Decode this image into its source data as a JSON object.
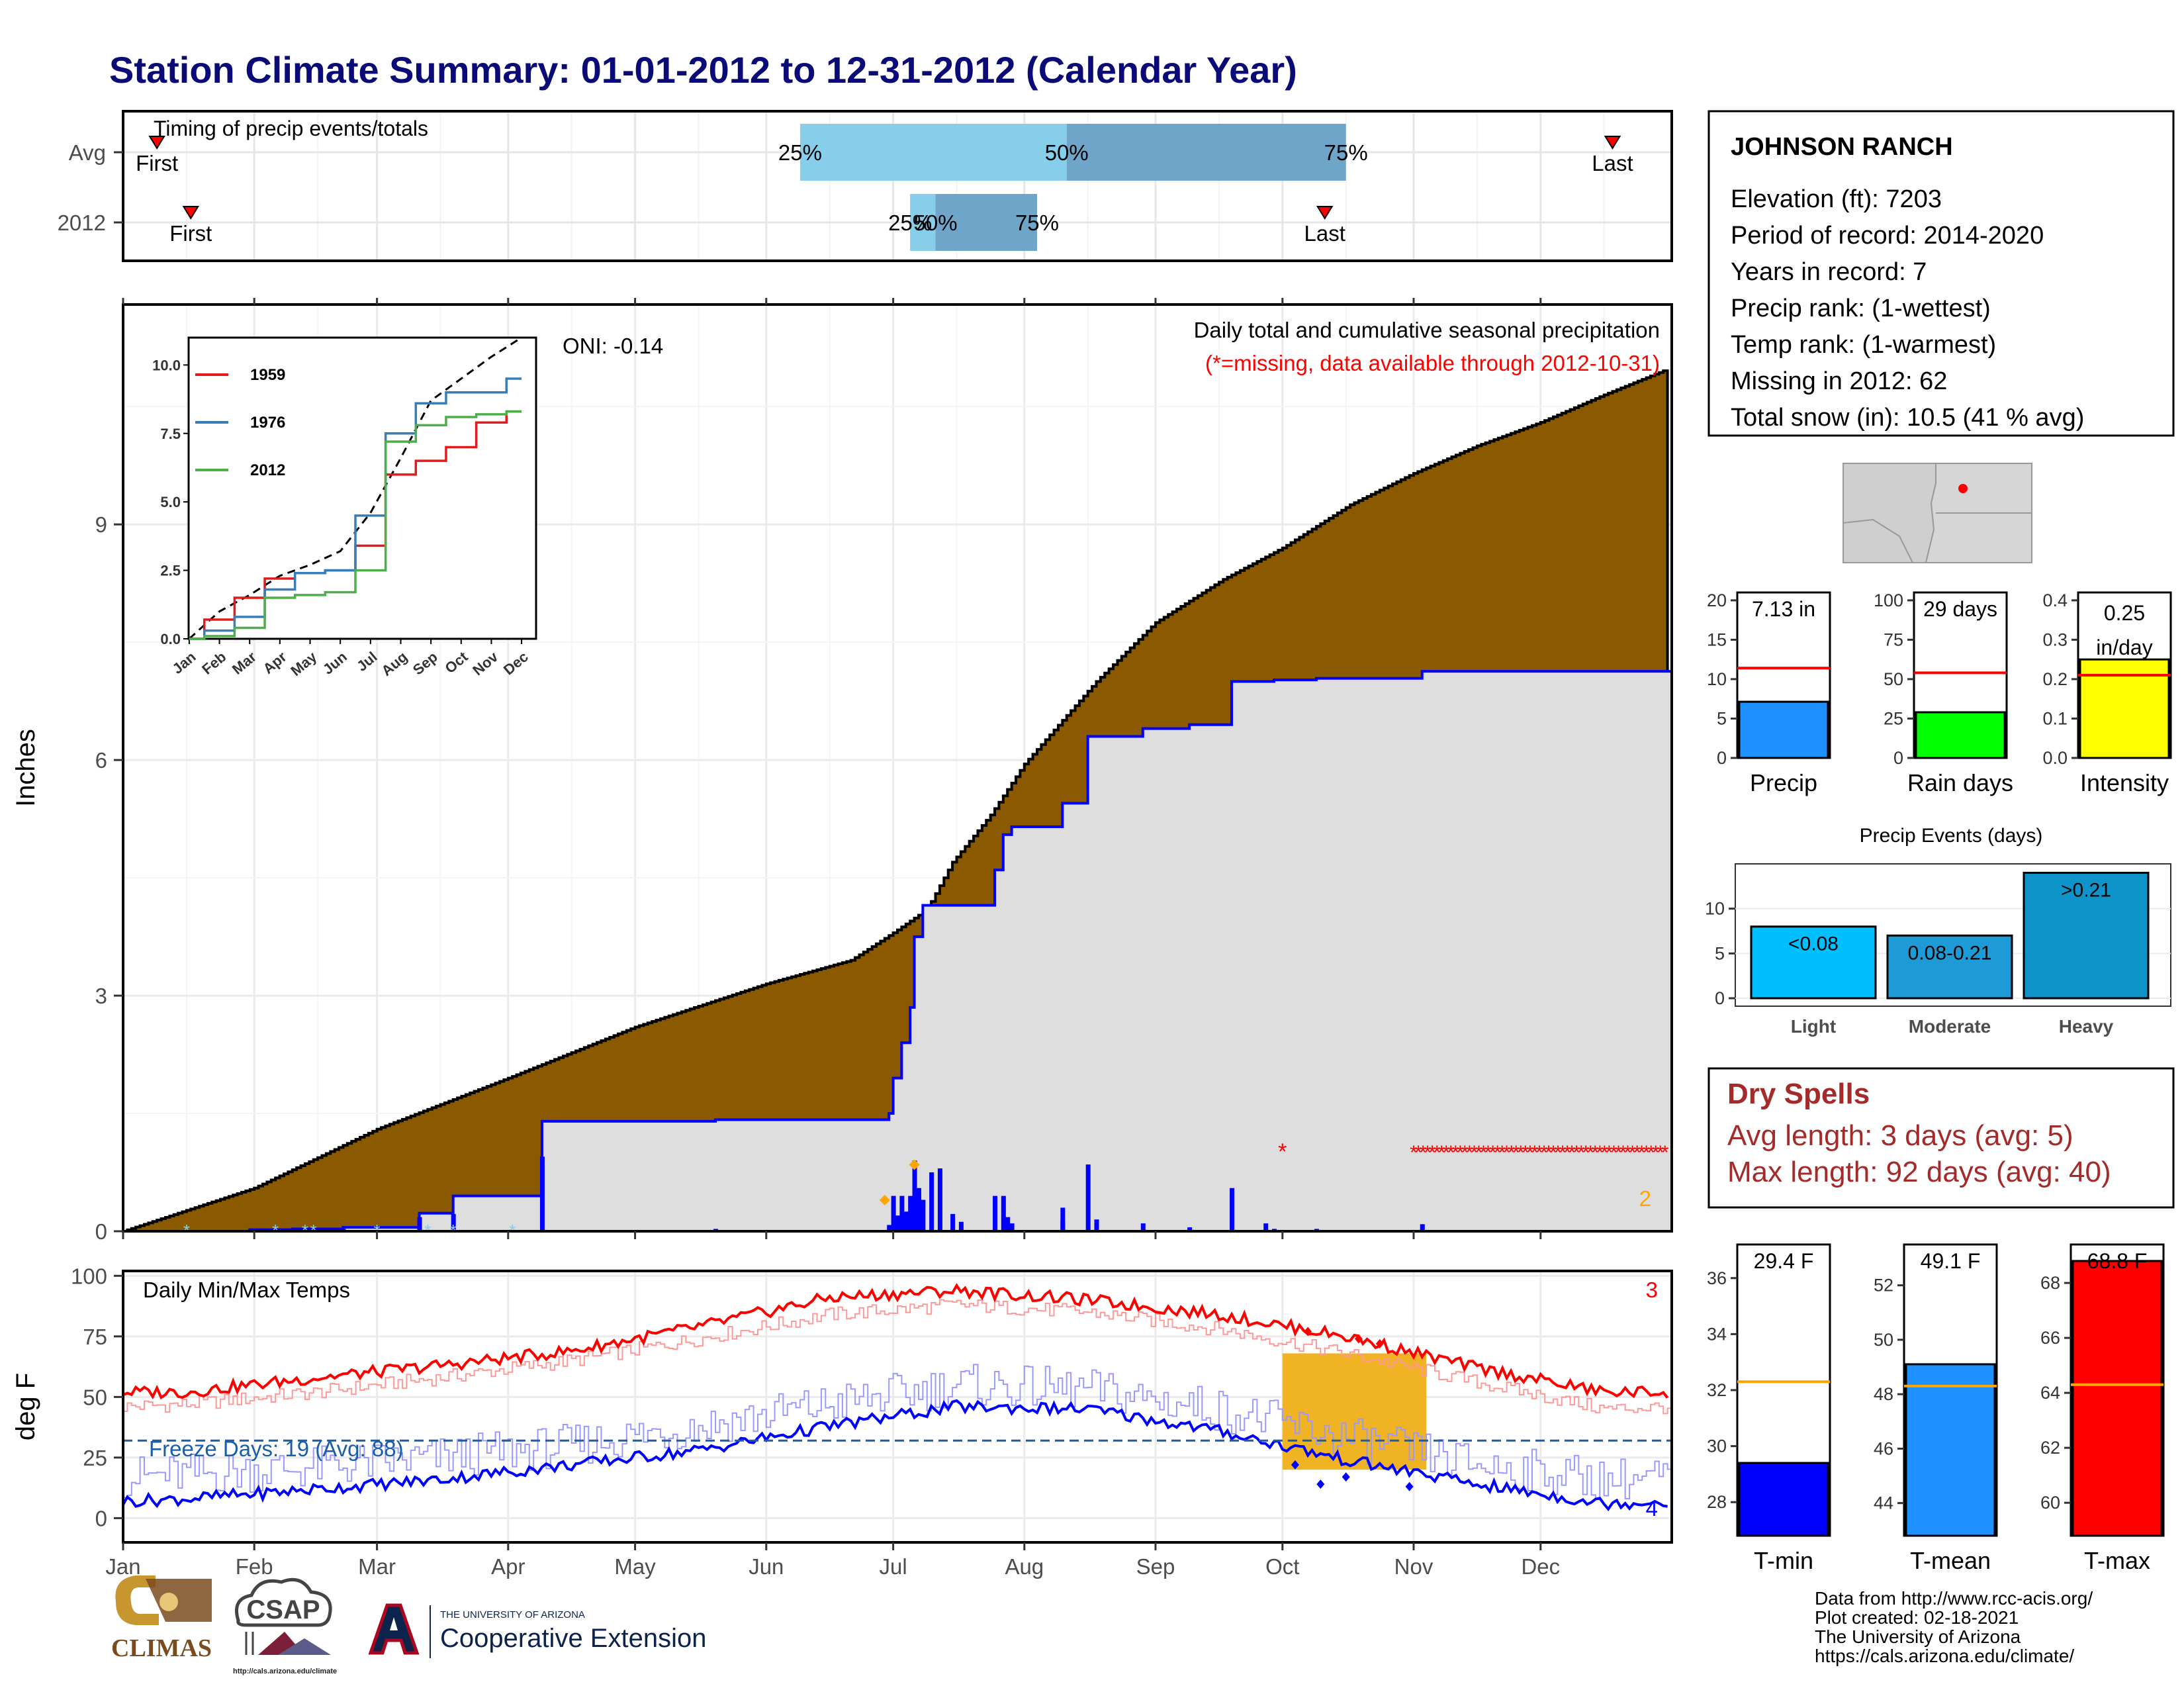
{
  "title": "Station Climate Summary: 01-01-2012 to 12-31-2012 (Calendar Year)",
  "colors": {
    "title": "#0b0b78",
    "precip_fill": "#8b5a00",
    "cum_2012": "#dedede",
    "cum_line": "#0000ff",
    "missing": "#ff0000",
    "timing_light": "#87ceeb",
    "timing_dark": "#6fa5c9",
    "freeze": "#1a5ea8",
    "dry_spells": "#a52a2a",
    "orange": "#ffa500"
  },
  "timing_panel": {
    "title": "Timing of precip events/totals",
    "rows": [
      {
        "label": "Avg",
        "first": "First",
        "last": "Last",
        "p25": "25%",
        "p50": "50%",
        "p75": "75%",
        "first_day": 8,
        "p25_day": 160,
        "p50_day": 223,
        "p75_day": 289,
        "last_day": 352
      },
      {
        "label": "2012",
        "first": "First",
        "last": "Last",
        "p25": "25%",
        "p50": "50%",
        "p75": "75%",
        "first_day": 16,
        "p25_day": 186,
        "p50_day": 192,
        "p75_day": 216,
        "last_day": 284
      }
    ]
  },
  "precip_panel": {
    "ylabel": "Inches",
    "subtitle": "Daily total and cumulative seasonal precipitation",
    "missing_note": "(*=missing, data available through 2012-10-31)",
    "oni": "ONI: -0.14",
    "corner_count": "2",
    "y_ticks": [
      "0",
      "3",
      "6",
      "9"
    ],
    "months": [
      "Jan",
      "Feb",
      "Mar",
      "Apr",
      "May",
      "Jun",
      "Jul",
      "Aug",
      "Sep",
      "Oct",
      "Nov",
      "Dec"
    ]
  },
  "inset": {
    "y_ticks": [
      "0.0",
      "2.5",
      "5.0",
      "7.5",
      "10.0"
    ],
    "months": [
      "Jan",
      "Feb",
      "Mar",
      "Apr",
      "May",
      "Jun",
      "Jul",
      "Aug",
      "Sep",
      "Oct",
      "Nov",
      "Dec"
    ],
    "legend": [
      {
        "name": "1959",
        "color": "#e41a1c"
      },
      {
        "name": "1976",
        "color": "#377eb8"
      },
      {
        "name": "2012",
        "color": "#4daf4a"
      }
    ]
  },
  "temp_panel": {
    "ylabel": "deg F",
    "title": "Daily Min/Max Temps",
    "freeze_label": "Freeze Days: 19 (Avg: 88)",
    "count_red": "3",
    "count_blue": "4",
    "y_ticks": [
      "0",
      "25",
      "50",
      "75",
      "100"
    ],
    "months": [
      "Jan",
      "Feb",
      "Mar",
      "Apr",
      "May",
      "Jun",
      "Jul",
      "Aug",
      "Sep",
      "Oct",
      "Nov",
      "Dec"
    ]
  },
  "station": {
    "name": "JOHNSON RANCH",
    "lines": [
      "Elevation (ft): 7203",
      "Period of record: 2014-2020",
      "Years in record: 7",
      "Precip rank:  (1-wettest)",
      "Temp rank:  (1-warmest)",
      "Missing in 2012: 62",
      "Total snow (in): 10.5 (41 % avg)"
    ]
  },
  "precip_bars": [
    {
      "label": "Precip",
      "value_label": "7.13 in",
      "value": 7.13,
      "avg": 11.4,
      "ymax": 21,
      "ticks": [
        "0",
        "5",
        "10",
        "15",
        "20"
      ],
      "color": "#1e90ff"
    },
    {
      "label": "Rain days",
      "value_label": "29 days",
      "value": 29,
      "avg": 54,
      "ymax": 105,
      "ticks": [
        "0",
        "25",
        "50",
        "75",
        "100"
      ],
      "color": "#00ff00"
    },
    {
      "label": "Intensity",
      "value_label": "0.25 in/day",
      "value": 0.25,
      "avg": 0.21,
      "ymax": 0.42,
      "ticks": [
        "0.0",
        "0.1",
        "0.2",
        "0.3",
        "0.4"
      ],
      "color": "#ffff00"
    }
  ],
  "events": {
    "title": "Precip Events (days)",
    "y_ticks": [
      "0",
      "5",
      "10"
    ],
    "bars": [
      {
        "category": "Light",
        "label": "<0.08",
        "value": 8,
        "color": "#00bfff"
      },
      {
        "category": "Moderate",
        "label": "0.08-0.21",
        "value": 7,
        "color": "#1e9bd7"
      },
      {
        "category": "Heavy",
        "label": ">0.21",
        "value": 14,
        "color": "#0e94c8"
      }
    ]
  },
  "dry_spells": {
    "title": "Dry Spells",
    "avg_line": "Avg length: 3 days (avg: 5)",
    "max_line": "Max length: 92 days (avg: 40)"
  },
  "temp_bars": [
    {
      "label": "T-min",
      "value_label": "29.4 F",
      "value": 29.4,
      "avg": 32.3,
      "ymin": 26.8,
      "ymax": 37.2,
      "ticks": [
        "28",
        "30",
        "32",
        "34",
        "36"
      ],
      "color": "#0000ff"
    },
    {
      "label": "T-mean",
      "value_label": "49.1 F",
      "value": 49.1,
      "avg": 48.3,
      "ymin": 42.8,
      "ymax": 53.5,
      "ticks": [
        "44",
        "46",
        "48",
        "50",
        "52"
      ],
      "color": "#1e90ff"
    },
    {
      "label": "T-max",
      "value_label": "68.8 F",
      "value": 68.8,
      "avg": 64.3,
      "ymin": 58.8,
      "ymax": 69.4,
      "ticks": [
        "60",
        "62",
        "64",
        "66",
        "68"
      ],
      "color": "#ff0000"
    }
  ],
  "footer": {
    "lines": [
      "Data from http://www.rcc-acis.org/",
      "Plot created: 02-18-2021",
      "The University of Arizona",
      "https://cals.arizona.edu/climate/"
    ],
    "climas": "CLIMAS",
    "csap": "CSAP",
    "csap_url": "http://cals.arizona.edu/climate",
    "ua_small": "THE UNIVERSITY OF ARIZONA",
    "ua_big": "Cooperative Extension"
  },
  "chart_data": [
    {
      "type": "area",
      "title": "Daily total and cumulative seasonal precipitation",
      "ylabel": "Inches",
      "ylim": [
        0,
        11.8
      ],
      "x_unit": "day of year 2012",
      "series": [
        {
          "name": "cumulative average",
          "x": [
            0,
            31,
            60,
            91,
            121,
            152,
            172,
            182,
            190,
            196,
            205,
            213,
            230,
            244,
            260,
            274,
            290,
            305,
            320,
            335,
            350,
            366
          ],
          "values": [
            0,
            0.55,
            1.3,
            1.95,
            2.6,
            3.15,
            3.45,
            3.8,
            4.1,
            4.7,
            5.3,
            5.95,
            7.0,
            7.75,
            8.3,
            8.7,
            9.25,
            9.65,
            10.0,
            10.3,
            10.65,
            11.0
          ]
        },
        {
          "name": "2012",
          "x": [
            0,
            30,
            40,
            52,
            70,
            78,
            90,
            99,
            140,
            180,
            181,
            182,
            184,
            186,
            187,
            189,
            190,
            192,
            194,
            204,
            206,
            208,
            210,
            212,
            222,
            228,
            240,
            241,
            252,
            262,
            272,
            282,
            307,
            366
          ],
          "values": [
            0,
            0.02,
            0.03,
            0.05,
            0.23,
            0.45,
            0.45,
            1.4,
            1.42,
            1.42,
            1.5,
            1.95,
            2.4,
            2.85,
            3.75,
            4.15,
            4.15,
            4.15,
            4.15,
            4.15,
            4.6,
            5.05,
            5.15,
            5.15,
            5.45,
            6.3,
            6.3,
            6.4,
            6.45,
            7.0,
            7.02,
            7.04,
            7.13,
            7.13
          ]
        }
      ]
    },
    {
      "type": "line",
      "title": "Daily Min/Max Temps",
      "ylabel": "deg F",
      "ylim": [
        -10,
        102
      ],
      "x": [
        "Jan",
        "Feb",
        "Mar",
        "Apr",
        "May",
        "Jun",
        "Jul",
        "Aug",
        "Sep",
        "Oct",
        "Nov",
        "Dec"
      ],
      "series": [
        {
          "name": "avg max",
          "values": [
            47,
            52,
            58,
            65,
            74,
            84,
            88,
            85,
            78,
            68,
            56,
            45
          ]
        },
        {
          "name": "avg min",
          "values": [
            18,
            21,
            25,
            30,
            38,
            47,
            55,
            53,
            45,
            33,
            22,
            16
          ]
        },
        {
          "name": "2012 max",
          "values": [
            52,
            58,
            63,
            69,
            79,
            91,
            94,
            90,
            84,
            75,
            62,
            52
          ]
        },
        {
          "name": "2012 min",
          "values": [
            8,
            12,
            16,
            22,
            28,
            38,
            46,
            45,
            36,
            24,
            14,
            6
          ]
        }
      ],
      "freeze_line": 32
    },
    {
      "type": "line",
      "title": "Cumulative precipitation (inset)",
      "ylim": [
        0,
        11
      ],
      "x": [
        "Jan",
        "Feb",
        "Mar",
        "Apr",
        "May",
        "Jun",
        "Jul",
        "Aug",
        "Sep",
        "Oct",
        "Nov",
        "Dec"
      ],
      "series": [
        {
          "name": "1959",
          "values": [
            0,
            0.7,
            1.5,
            2.2,
            2.4,
            2.5,
            3.4,
            6.0,
            6.5,
            7.0,
            7.9,
            8.3
          ]
        },
        {
          "name": "1976",
          "values": [
            0,
            0.3,
            0.8,
            1.8,
            2.4,
            2.5,
            4.5,
            7.5,
            8.6,
            9.0,
            9.0,
            9.5
          ]
        },
        {
          "name": "2012",
          "values": [
            0,
            0.1,
            0.4,
            1.5,
            1.6,
            1.7,
            2.5,
            7.2,
            7.8,
            8.1,
            8.2,
            8.3
          ]
        }
      ]
    }
  ]
}
